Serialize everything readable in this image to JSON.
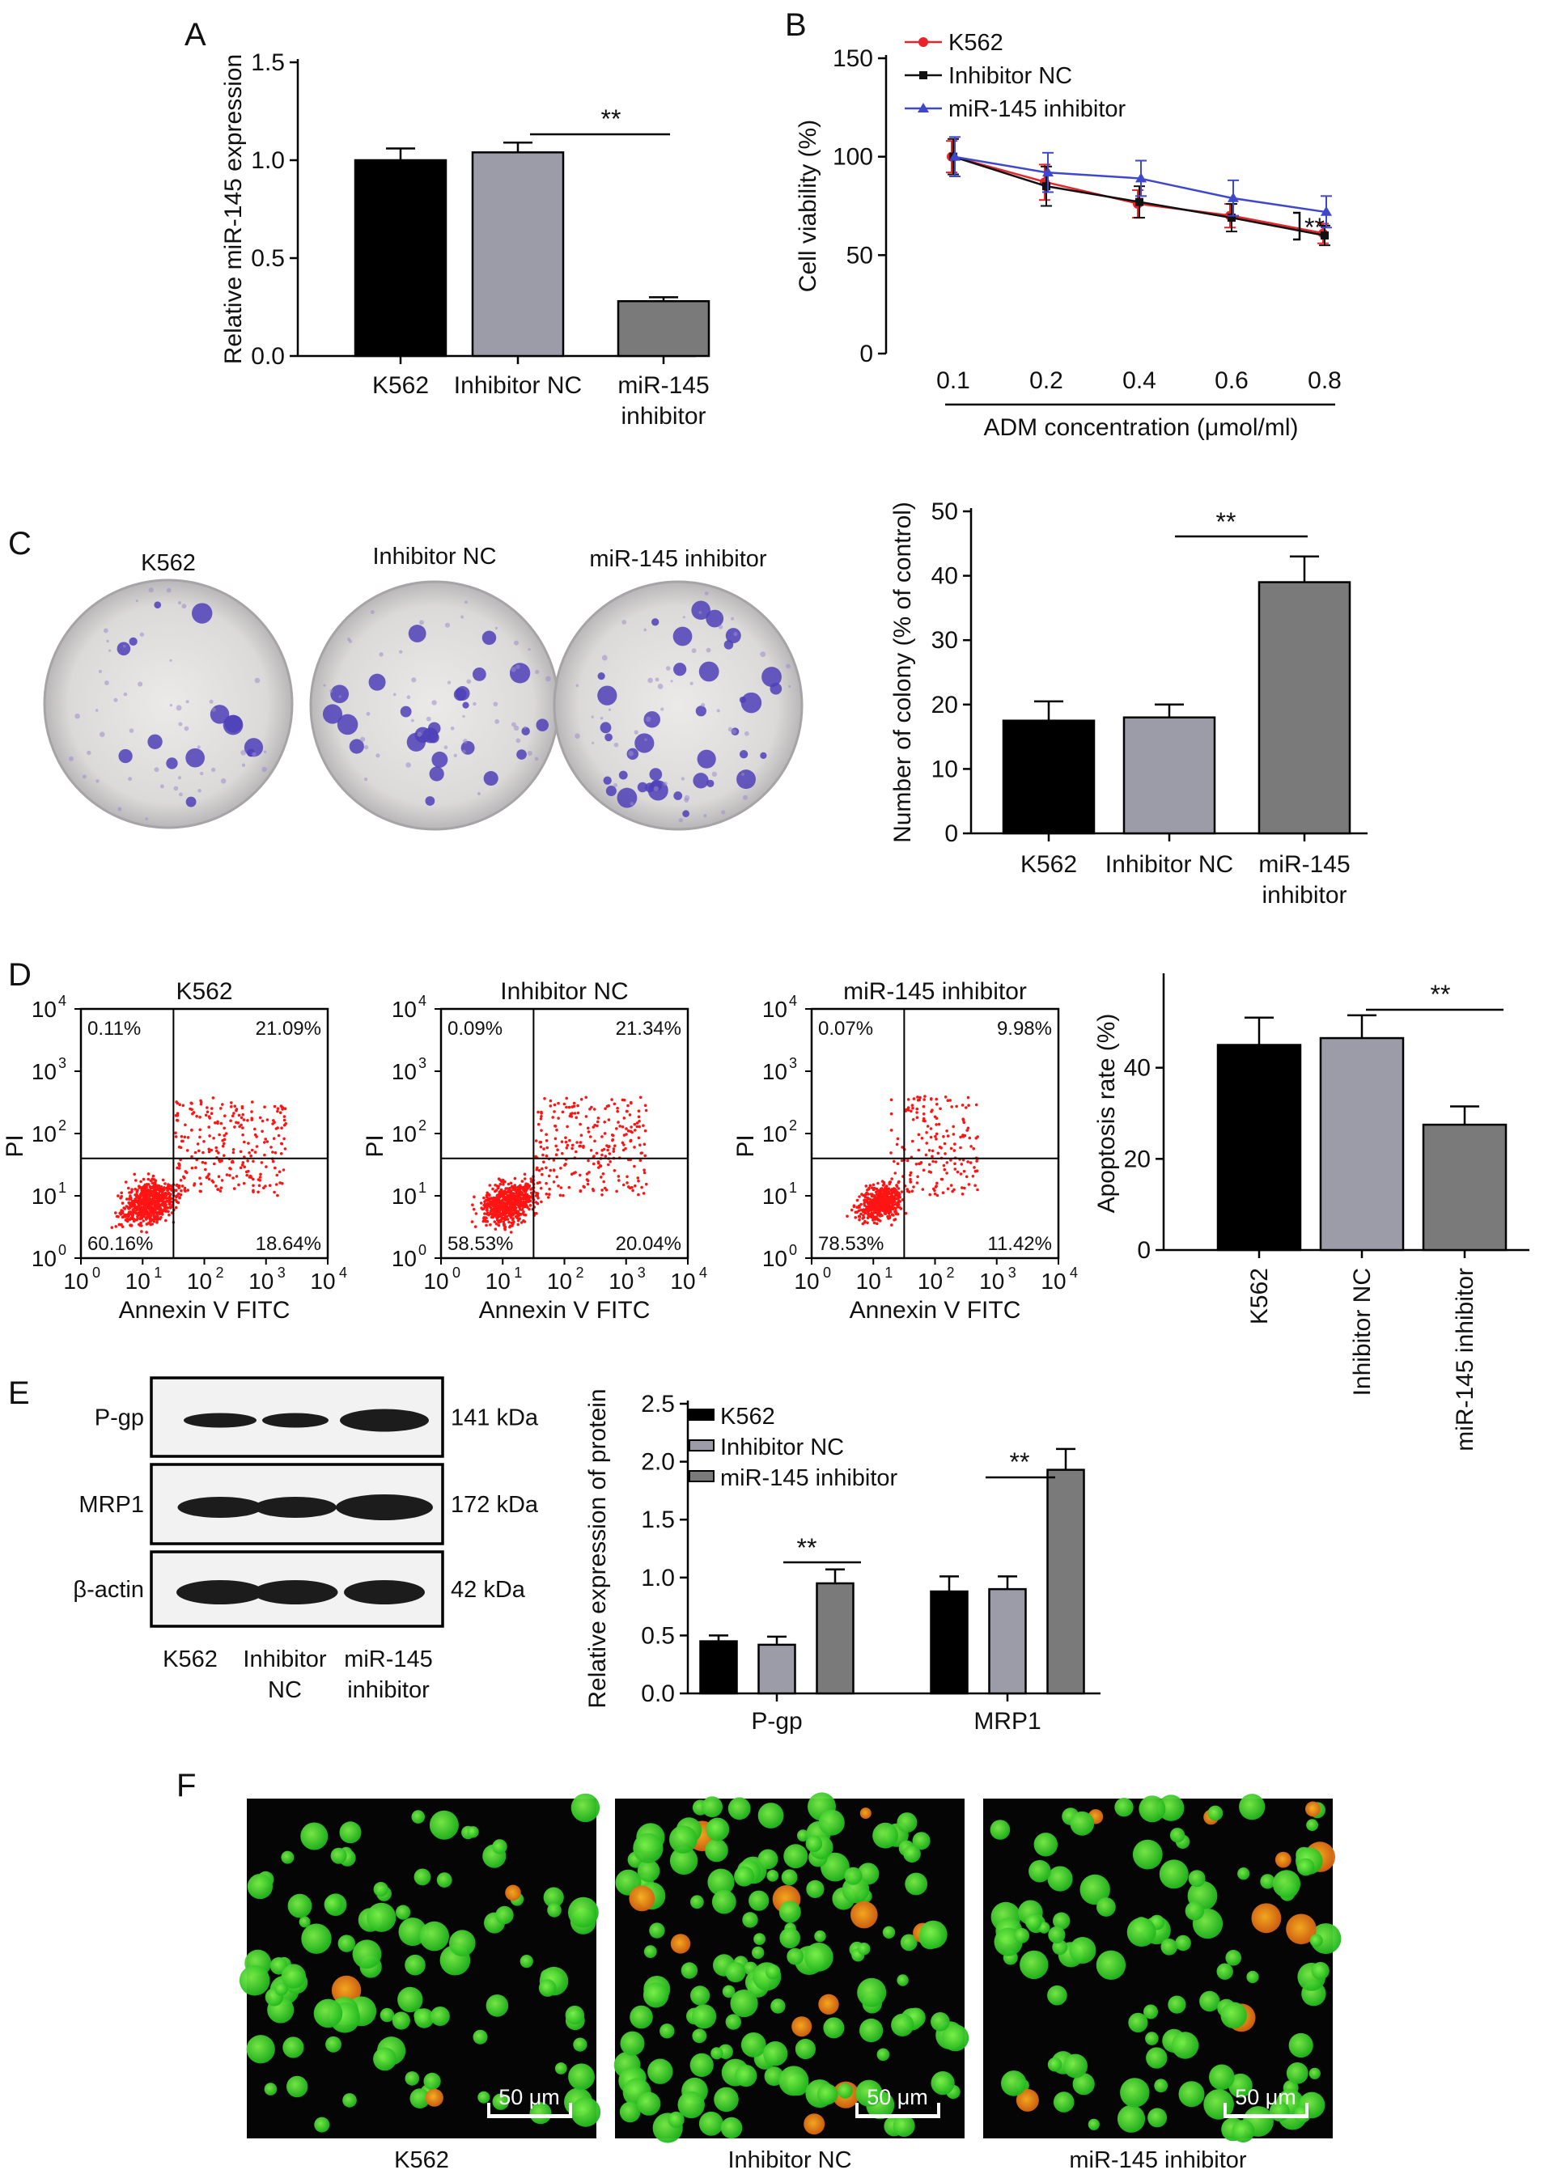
{
  "panel_labels": [
    "A",
    "B",
    "C",
    "D",
    "E",
    "F"
  ],
  "groups": [
    "K562",
    "Inhibitor NC",
    "miR-145 inhibitor"
  ],
  "colors": {
    "black": "#000000",
    "light_gray": "#9c9ca8",
    "dark_gray": "#7a7a7a",
    "k562_line": "#e8242a",
    "nc_line": "#111111",
    "inh_line": "#3f48cc",
    "flow_dots": "#ff1414"
  },
  "sig": "**",
  "chart_data": [
    {
      "panel": "A",
      "type": "bar",
      "categories": [
        "K562",
        "Inhibitor NC",
        "miR-145 inhibitor"
      ],
      "category_lines": [
        [
          "K562"
        ],
        [
          "Inhibitor NC"
        ],
        [
          "miR-145",
          "inhibitor"
        ]
      ],
      "values": [
        1.0,
        1.04,
        0.28
      ],
      "errors": [
        0.06,
        0.05,
        0.02
      ],
      "ylabel": "Relative miR-145 expression",
      "ylim": [
        0,
        1.5
      ],
      "yticks": [
        "0.0",
        "0.5",
        "1.0",
        "1.5"
      ],
      "significance": "**"
    },
    {
      "panel": "B",
      "type": "line",
      "x": [
        "0.1",
        "0.2",
        "0.4",
        "0.6",
        "0.8"
      ],
      "xlabel": "ADM concentration (μmol/ml)",
      "ylabel": "Cell viability (%)",
      "ylim": [
        0,
        150
      ],
      "yticks": [
        "0",
        "50",
        "100",
        "150"
      ],
      "legend_position": "top-left",
      "series": [
        {
          "name": "K562",
          "marker": "circle",
          "values": [
            100,
            87,
            76,
            70,
            61
          ],
          "errors": [
            8,
            9,
            7,
            6,
            5
          ]
        },
        {
          "name": "Inhibitor NC",
          "marker": "square",
          "values": [
            100,
            85,
            77,
            69,
            60
          ],
          "errors": [
            9,
            10,
            8,
            7,
            5
          ]
        },
        {
          "name": "miR-145 inhibitor",
          "marker": "triangle",
          "values": [
            100,
            92,
            89,
            79,
            72
          ],
          "errors": [
            10,
            10,
            9,
            9,
            8
          ]
        }
      ],
      "significance": "**"
    },
    {
      "panel": "C",
      "type": "bar",
      "categories": [
        "K562",
        "Inhibitor NC",
        "miR-145 inhibitor"
      ],
      "category_lines": [
        [
          "K562"
        ],
        [
          "Inhibitor NC"
        ],
        [
          "miR-145",
          "inhibitor"
        ]
      ],
      "values": [
        17.5,
        18.0,
        39.0
      ],
      "errors": [
        3.0,
        2.0,
        4.0
      ],
      "ylabel": "Number of colony (% of control)",
      "ylim": [
        0,
        50
      ],
      "yticks": [
        "0",
        "10",
        "20",
        "30",
        "40",
        "50"
      ],
      "significance": "**"
    },
    {
      "panel": "D",
      "type": "bar",
      "categories": [
        "K562",
        "Inhibitor NC",
        "miR-145 inhibitor"
      ],
      "values": [
        45,
        46.5,
        27.5
      ],
      "errors": [
        6,
        5,
        4
      ],
      "ylabel": "Apoptosis rate (%)",
      "ylim": [
        0,
        60
      ],
      "yticks": [
        "0",
        "20",
        "40"
      ],
      "significance": "**"
    },
    {
      "panel": "E",
      "type": "bar",
      "categories": [
        "P-gp",
        "MRP1"
      ],
      "ylabel": "Relative expression of protein",
      "ylim": [
        0,
        2.5
      ],
      "yticks": [
        "0.0",
        "0.5",
        "1.0",
        "1.5",
        "2.0",
        "2.5"
      ],
      "legend_position": "top-left",
      "series": [
        {
          "name": "K562",
          "values": [
            0.45,
            0.88
          ],
          "errors": [
            0.05,
            0.13
          ]
        },
        {
          "name": "Inhibitor NC",
          "values": [
            0.42,
            0.9
          ],
          "errors": [
            0.07,
            0.11
          ]
        },
        {
          "name": "miR-145 inhibitor",
          "values": [
            0.95,
            1.93
          ],
          "errors": [
            0.12,
            0.18
          ]
        }
      ],
      "significance": "**"
    }
  ],
  "colony_titles": [
    "K562",
    "Inhibitor NC",
    "miR-145 inhibitor"
  ],
  "flow": {
    "xlabel": "Annexin V FITC",
    "ylabel": "PI",
    "axis_ticks": [
      "10",
      "10",
      "10",
      "10",
      "10"
    ],
    "tick_exponents": [
      "0",
      "1",
      "2",
      "3",
      "4"
    ],
    "plots": [
      {
        "title": "K562",
        "ul": "0.11%",
        "ur": "21.09%",
        "ll": "60.16%",
        "lr": "18.64%"
      },
      {
        "title": "Inhibitor NC",
        "ul": "0.09%",
        "ur": "21.34%",
        "ll": "58.53%",
        "lr": "20.04%"
      },
      {
        "title": "miR-145 inhibitor",
        "ul": "0.07%",
        "ur": "9.98%",
        "ll": "78.53%",
        "lr": "11.42%"
      }
    ]
  },
  "western": {
    "proteins": [
      "P-gp",
      "MRP1",
      "β-actin"
    ],
    "sizes": [
      "141 kDa",
      "172 kDa",
      "42 kDa"
    ],
    "lane_labels": [
      [
        "K562"
      ],
      [
        "Inhibitor",
        "NC"
      ],
      [
        "miR-145",
        "inhibitor"
      ]
    ]
  },
  "microscopy": {
    "scale_bar": "50 μm",
    "captions": [
      "K562",
      "Inhibitor NC",
      "miR-145 inhibitor"
    ]
  }
}
